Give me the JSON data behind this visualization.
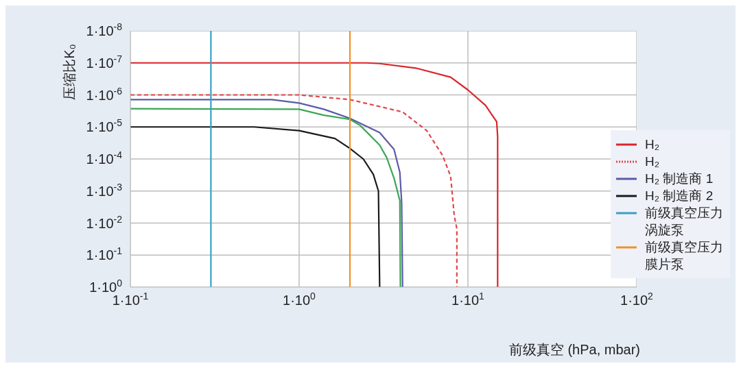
{
  "chart_data": {
    "type": "line",
    "xlabel": "前级真空 (hPa, mbar)",
    "ylabel": "压缩比K₀",
    "xlim": [
      0.1,
      100
    ],
    "ylim": [
      1,
      1e-08
    ],
    "log": "xy",
    "grid": true,
    "legend": "right",
    "line_style": "solid",
    "marker": "none",
    "xticks": [
      {
        "value": 0.1,
        "label": "1·10$^{-1}$"
      },
      {
        "value": 1,
        "label": "1·10$^{0}$"
      },
      {
        "value": 10,
        "label": "1·10$^{1}$"
      },
      {
        "value": 100,
        "label": "1·10$^{2}$"
      }
    ],
    "yticks": [
      {
        "value": 1e-08,
        "label": "1·10$^{-8}$"
      },
      {
        "value": 1e-07,
        "label": "1·10$^{-7}$"
      },
      {
        "value": 1e-06,
        "label": "1·10$^{-6}$"
      },
      {
        "value": 1e-05,
        "label": "1·10$^{-5}$"
      },
      {
        "value": 0.0001,
        "label": "1·10$^{-4}$"
      },
      {
        "value": 0.001,
        "label": "1·10$^{-3}$"
      },
      {
        "value": 0.01,
        "label": "1·10$^{-2}$"
      },
      {
        "value": 0.1,
        "label": "1·10$^{-1}$"
      },
      {
        "value": 1,
        "label": "1·10$^{0}$"
      }
    ],
    "series": [
      {
        "name": "H₂",
        "color": "#d9262b",
        "x": [
          0.1,
          2.5,
          3.0,
          4.9,
          7.9,
          10,
          12.7,
          14.8,
          15,
          15
        ],
        "values": [
          1e-07,
          1e-07,
          1.05e-07,
          1.45e-07,
          2.8e-07,
          7e-07,
          2.1e-06,
          6.9e-06,
          2e-05,
          1
        ]
      },
      {
        "name": "H₂",
        "color": "#e0474c",
        "line_style": "dashed",
        "x": [
          0.1,
          1.0,
          2.0,
          4.1,
          5.7,
          7.1,
          7.9,
          8.3,
          8.6,
          8.6
        ],
        "values": [
          1e-06,
          1e-06,
          1.4e-06,
          3.4e-06,
          1.3e-05,
          8e-05,
          0.00035,
          0.006,
          0.015,
          1
        ]
      },
      {
        "name": "H₂ 制造商 1",
        "color": "#5a5aa8",
        "x": [
          0.1,
          0.69,
          1.0,
          1.4,
          2.0,
          3.0,
          3.65,
          3.95,
          4.05,
          4.1
        ],
        "values": [
          1.4e-06,
          1.4e-06,
          1.8e-06,
          2.8e-06,
          5.4e-06,
          1.5e-05,
          5e-05,
          0.00026,
          0.0023,
          1
        ]
      },
      {
        "name": "H₂ 制造商 2",
        "color": "#1a1a1a",
        "x": [
          0.1,
          0.54,
          1.0,
          1.63,
          2.0,
          2.4,
          2.75,
          2.95,
          3.0
        ],
        "values": [
          1e-05,
          1e-05,
          1.3e-05,
          2.3e-05,
          4.7e-05,
          0.0001,
          0.0003,
          0.001,
          1
        ]
      },
      {
        "color": "#3aa655",
        "x": [
          0.1,
          1.0,
          1.4,
          2.0,
          2.3,
          3.0,
          3.3,
          3.65,
          3.95,
          3.98
        ],
        "values": [
          2.7e-06,
          2.8e-06,
          4.3e-06,
          5.8e-06,
          9e-06,
          3.7e-05,
          9e-05,
          0.0004,
          0.002,
          1
        ]
      },
      {
        "name": "前级真空压力涡旋泵",
        "color": "#3a9fc4",
        "x": [
          0.3,
          0.3
        ],
        "values": [
          1e-08,
          1
        ]
      },
      {
        "name": "前级真空压力膜片泵",
        "color": "#f0912a",
        "x": [
          2,
          2
        ],
        "values": [
          1e-08,
          1
        ]
      }
    ]
  }
}
